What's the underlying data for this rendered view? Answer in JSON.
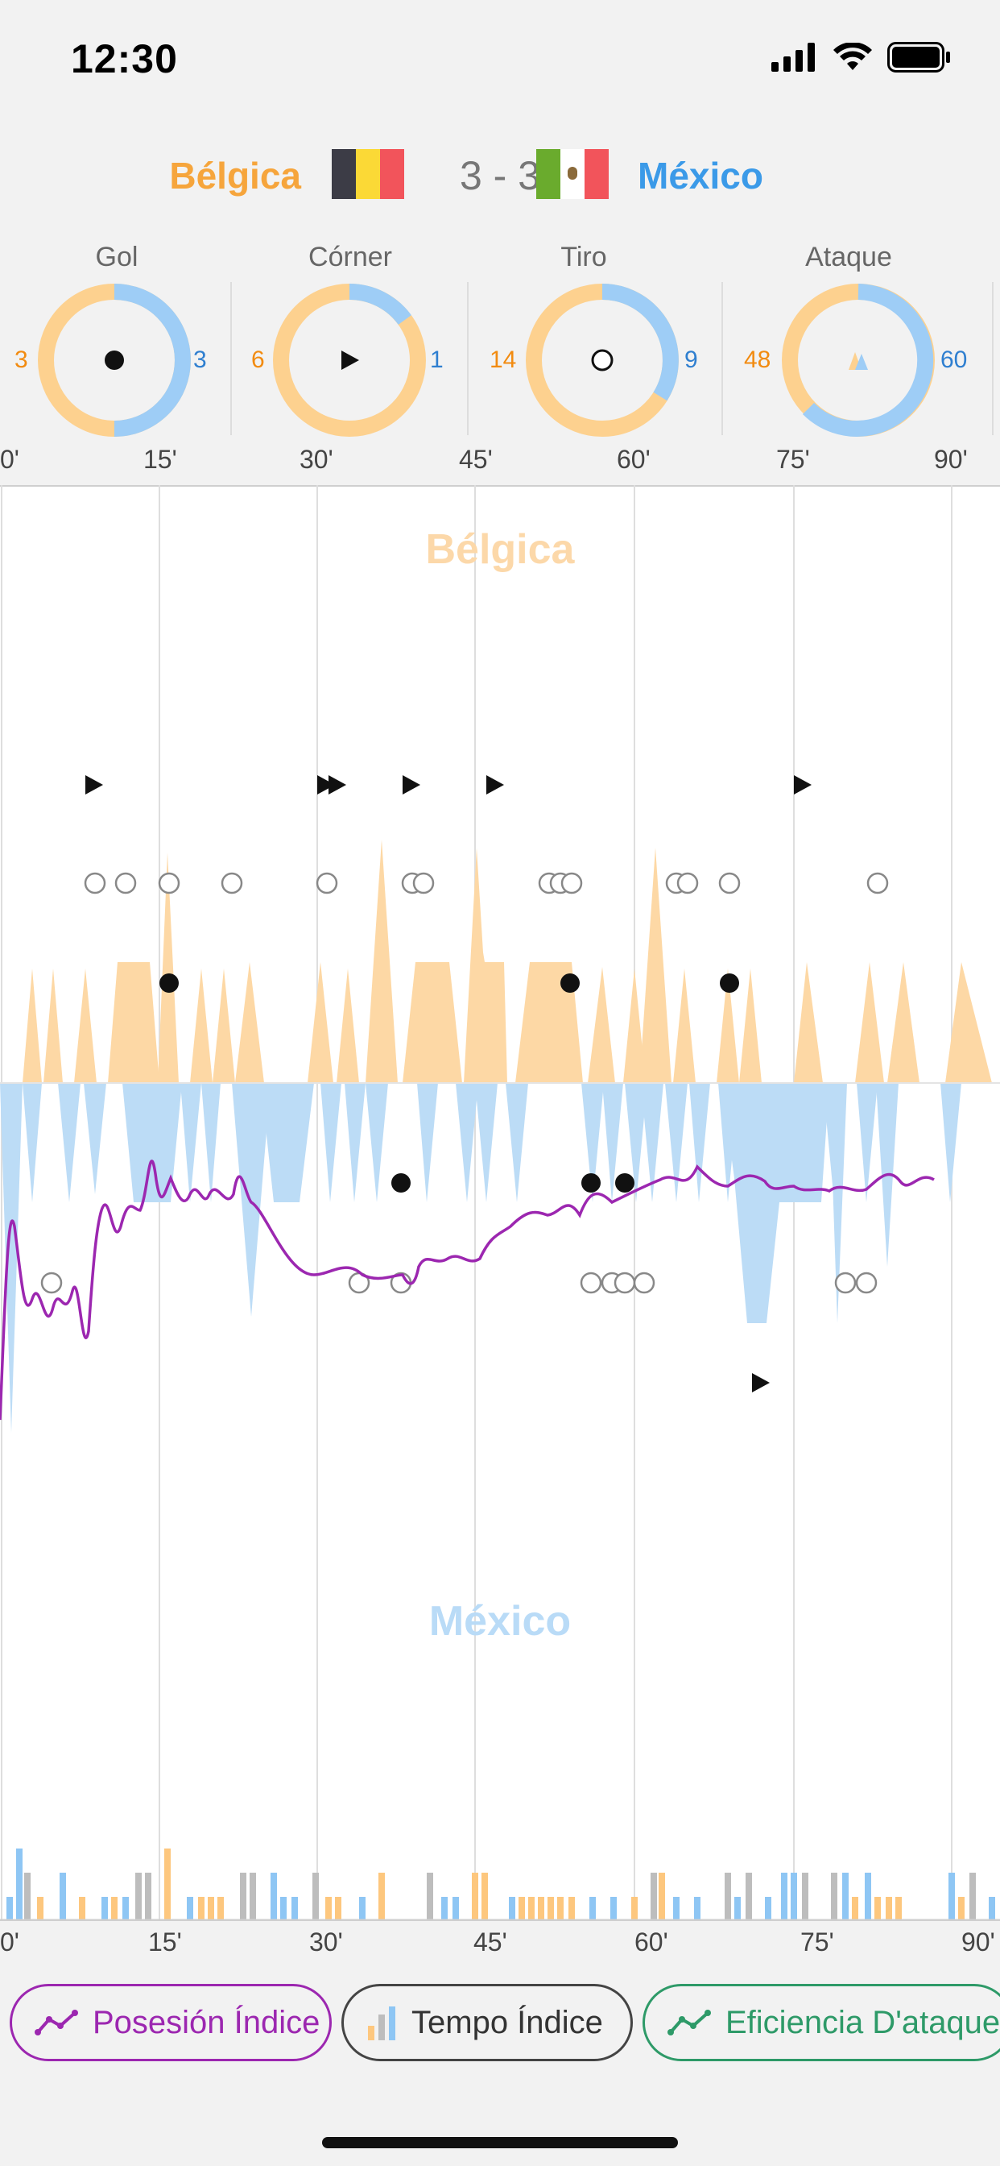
{
  "status": {
    "time": "12:30"
  },
  "match": {
    "home": "Bélgica",
    "away": "México",
    "score": "3 - 3"
  },
  "colors": {
    "home": "#f6a53c",
    "away": "#3b9ae8",
    "home_light": "#fcd8a9",
    "away_light": "#b9dbf7",
    "possession": "#9c27b0",
    "tempo": "#444444",
    "efficiency": "#2e9a68"
  },
  "stats": [
    {
      "label": "Gol",
      "home": "3",
      "away": "3",
      "icon": "filled-dot-icon"
    },
    {
      "label": "Córner",
      "home": "6",
      "away": "1",
      "icon": "triangle-flag-icon"
    },
    {
      "label": "Tiro",
      "home": "14",
      "away": "9",
      "icon": "hollow-circle-icon"
    },
    {
      "label": "Ataque",
      "home": "48",
      "away": "60",
      "icon": "attack-triangles-icon"
    }
  ],
  "ticks_top": [
    "0'",
    "15'",
    "30'",
    "45'",
    "60'",
    "75'",
    "90'"
  ],
  "ticks_bottom": [
    "0'",
    "15'",
    "30'",
    "45'",
    "60'",
    "75'",
    "90'"
  ],
  "chart_labels": {
    "home": "Bélgica",
    "away": "México"
  },
  "buttons": [
    {
      "label": "Posesión Índice",
      "icon": "line-chart-icon"
    },
    {
      "label": "Tempo Índice",
      "icon": "bar-chart-icon"
    },
    {
      "label": "Eficiencia D'ataque",
      "icon": "trend-chart-icon"
    }
  ]
}
